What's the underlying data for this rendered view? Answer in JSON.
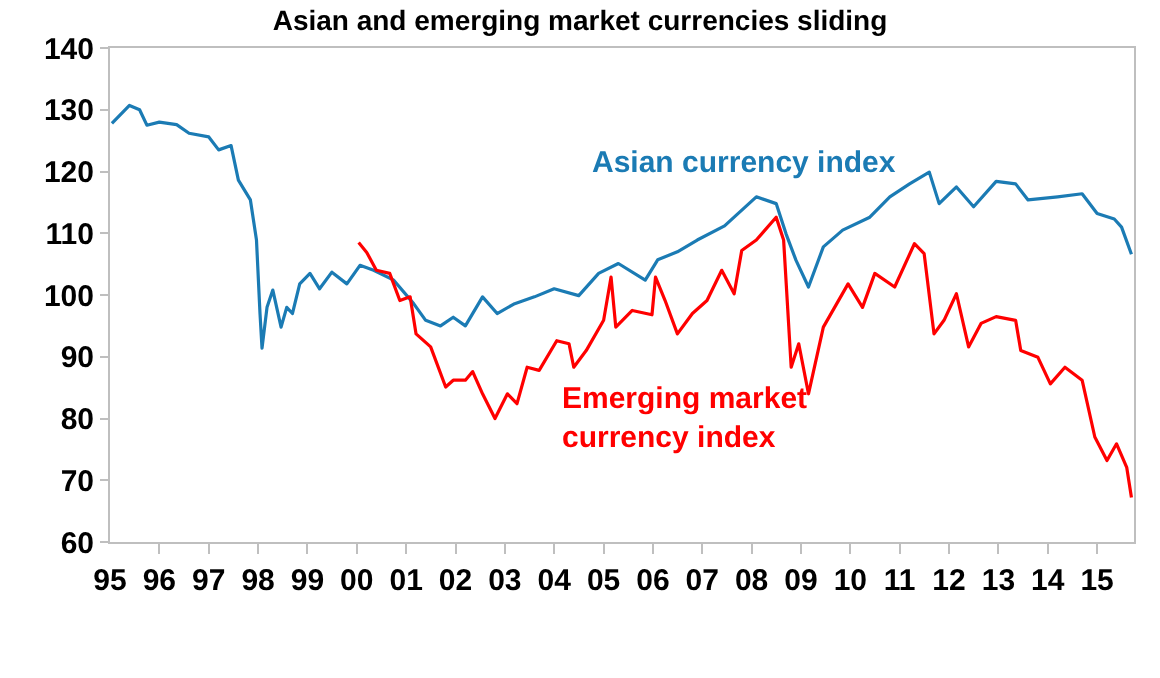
{
  "chart_data": {
    "type": "line",
    "title": "Asian and emerging market currencies sliding",
    "xlim": [
      "1995-01-01",
      "2015-10-01"
    ],
    "xticks": [
      {
        "value": "1995",
        "label": "95"
      },
      {
        "value": "1996",
        "label": "96"
      },
      {
        "value": "1997",
        "label": "97"
      },
      {
        "value": "1998",
        "label": "98"
      },
      {
        "value": "1999",
        "label": "99"
      },
      {
        "value": "2000",
        "label": "00"
      },
      {
        "value": "2001",
        "label": "01"
      },
      {
        "value": "2002",
        "label": "02"
      },
      {
        "value": "2003",
        "label": "03"
      },
      {
        "value": "2004",
        "label": "04"
      },
      {
        "value": "2005",
        "label": "05"
      },
      {
        "value": "2006",
        "label": "06"
      },
      {
        "value": "2007",
        "label": "07"
      },
      {
        "value": "2008",
        "label": "08"
      },
      {
        "value": "2009",
        "label": "09"
      },
      {
        "value": "2010",
        "label": "10"
      },
      {
        "value": "2011",
        "label": "11"
      },
      {
        "value": "2012",
        "label": "12"
      },
      {
        "value": "2013",
        "label": "13"
      },
      {
        "value": "2014",
        "label": "14"
      },
      {
        "value": "2015",
        "label": "15"
      }
    ],
    "ylim": [
      60,
      140
    ],
    "yticks": [
      60,
      70,
      80,
      90,
      100,
      110,
      120,
      130,
      140
    ],
    "legend": false,
    "marker": "none",
    "line_style": "solid",
    "series": [
      {
        "name": "Asian currency index",
        "color": "#1b7bb4",
        "x": [
          "1995-01-15",
          "1995-05-25",
          "1995-08-08",
          "1995-10-01",
          "1996-01-01",
          "1996-05-08",
          "1996-08-08",
          "1997-01-01",
          "1997-03-15",
          "1997-06-15",
          "1997-08-08",
          "1997-11-05",
          "1997-12-20",
          "1998-01-15",
          "1998-01-30",
          "1998-03-08",
          "1998-04-20",
          "1998-06-20",
          "1998-08-01",
          "1998-09-12",
          "1998-11-05",
          "1999-01-20",
          "1999-04-01",
          "1999-07-01",
          "1999-10-20",
          "2000-01-25",
          "2000-05-05",
          "2000-10-01",
          "2001-02-25",
          "2001-05-25",
          "2001-09-12",
          "2001-12-15",
          "2002-03-15",
          "2002-07-20",
          "2002-11-05",
          "2003-03-15",
          "2003-08-08",
          "2004-01-01",
          "2004-07-01",
          "2004-11-25",
          "2005-04-20",
          "2005-11-05",
          "2006-02-05",
          "2006-07-01",
          "2006-11-25",
          "2007-06-15",
          "2008-02-05",
          "2008-07-01",
          "2008-09-12",
          "2008-11-25",
          "2009-02-25",
          "2009-06-15",
          "2009-11-05",
          "2010-05-25",
          "2010-10-20",
          "2011-03-15",
          "2011-08-08",
          "2011-10-20",
          "2012-02-25",
          "2012-07-01",
          "2012-12-15",
          "2013-05-08",
          "2013-08-08",
          "2014-03-15",
          "2014-09-12",
          "2015-01-01",
          "2015-05-08",
          "2015-07-01",
          "2015-09-12"
        ],
        "values": [
          127.8,
          130.7,
          130,
          127.5,
          128,
          127.6,
          126.2,
          125.6,
          123.5,
          124.2,
          118.6,
          115.4,
          108.9,
          97,
          91.4,
          98,
          100.8,
          94.8,
          98,
          97,
          101.8,
          103.5,
          101,
          103.7,
          101.8,
          104.8,
          104,
          102.4,
          98.6,
          95.9,
          95,
          96.4,
          95,
          99.7,
          97,
          98.6,
          99.7,
          101,
          99.9,
          103.5,
          105.1,
          102.4,
          105.7,
          107,
          108.9,
          111.2,
          115.9,
          114.8,
          109.9,
          105.6,
          101.3,
          107.8,
          110.5,
          112.6,
          115.9,
          118,
          119.9,
          114.8,
          117.5,
          114.3,
          118.4,
          118,
          115.4,
          115.9,
          116.4,
          113.2,
          112.3,
          111,
          106.6
        ]
      },
      {
        "name": "Emerging market\ncurrency index",
        "color": "#ff0000",
        "x": [
          "2000-01-15",
          "2000-03-15",
          "2000-05-25",
          "2000-09-01",
          "2000-11-15",
          "2001-01-30",
          "2001-03-15",
          "2001-07-01",
          "2001-10-20",
          "2001-12-15",
          "2002-03-15",
          "2002-05-08",
          "2002-07-20",
          "2002-10-20",
          "2003-01-20",
          "2003-04-01",
          "2003-06-15",
          "2003-09-12",
          "2004-01-20",
          "2004-04-20",
          "2004-05-25",
          "2004-08-25",
          "2005-01-01",
          "2005-02-25",
          "2005-04-01",
          "2005-08-01",
          "2005-12-25",
          "2006-01-20",
          "2006-04-01",
          "2006-07-01",
          "2006-10-20",
          "2007-02-05",
          "2007-05-25",
          "2007-08-25",
          "2007-10-20",
          "2008-02-05",
          "2008-07-01",
          "2008-08-25",
          "2008-10-20",
          "2008-12-15",
          "2009-02-25",
          "2009-06-15",
          "2009-12-15",
          "2010-04-01",
          "2010-07-01",
          "2010-11-25",
          "2011-04-20",
          "2011-07-01",
          "2011-09-12",
          "2011-11-25",
          "2012-02-25",
          "2012-05-25",
          "2012-08-25",
          "2012-12-15",
          "2013-05-08",
          "2013-06-15",
          "2013-10-20",
          "2014-01-20",
          "2014-05-08",
          "2014-09-12",
          "2014-12-15",
          "2015-03-15",
          "2015-05-25",
          "2015-08-08",
          "2015-09-12"
        ],
        "values": [
          108.5,
          106.9,
          104,
          103.5,
          99.1,
          99.7,
          93.7,
          91.6,
          85.1,
          86.2,
          86.2,
          87.6,
          84,
          80,
          84,
          82.4,
          88.3,
          87.8,
          92.6,
          92.1,
          88.3,
          91,
          95.9,
          102.9,
          94.8,
          97.5,
          96.8,
          102.9,
          99.1,
          93.7,
          97,
          99.1,
          104,
          100.2,
          107.2,
          108.9,
          112.6,
          108.9,
          88.3,
          92.1,
          84,
          94.8,
          101.8,
          98,
          103.5,
          101.3,
          108.3,
          106.7,
          93.7,
          95.9,
          100.2,
          91.6,
          95.4,
          96.5,
          95.9,
          91,
          89.9,
          85.6,
          88.3,
          86.2,
          77,
          73.2,
          75.9,
          72.1,
          67.2
        ]
      }
    ]
  }
}
